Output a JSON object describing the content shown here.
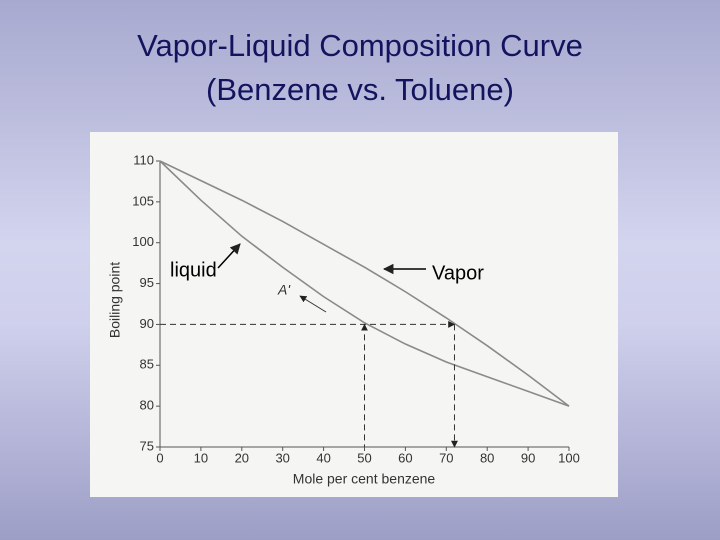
{
  "chart_data": {
    "type": "line",
    "title": "Vapor-Liquid Composition Curve",
    "subtitle": "(Benzene vs. Toluene)",
    "x_label": "Mole per cent benzene",
    "y_label": "Boiling point",
    "x": [
      0,
      10,
      20,
      30,
      40,
      50,
      60,
      70,
      80,
      90,
      100
    ],
    "series": [
      {
        "name": "liquid",
        "color": "#8a8a8a",
        "values": [
          110,
          105.2,
          100.8,
          97,
          93.4,
          90.2,
          87.6,
          85.4,
          83.6,
          81.8,
          80
        ]
      },
      {
        "name": "Vapor",
        "color": "#8a8a8a",
        "values": [
          110,
          107.6,
          105.2,
          102.6,
          99.8,
          97,
          94,
          90.8,
          87.4,
          83.8,
          80
        ]
      }
    ],
    "xlim": [
      0,
      100
    ],
    "xticks": [
      0,
      10,
      20,
      30,
      40,
      50,
      60,
      70,
      80,
      90,
      100
    ],
    "ylim": [
      75,
      110
    ],
    "yticks": [
      75,
      80,
      85,
      90,
      95,
      100,
      105,
      110
    ],
    "tie_line": {
      "y": 90,
      "x_liquid": 50,
      "x_vapor": 72
    },
    "point_label": "A'"
  }
}
